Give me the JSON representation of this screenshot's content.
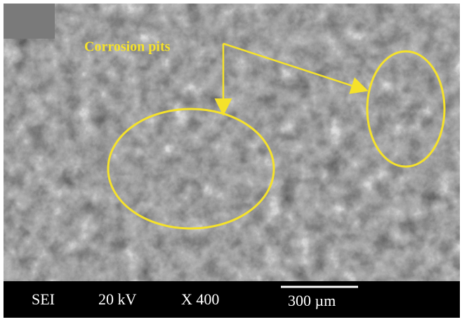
{
  "annotation": {
    "label": "Corrosion pits"
  },
  "info_bar": {
    "mode": "SEI",
    "voltage": "20 kV",
    "magnification": "X 400",
    "scale_bar_label": "300 µm"
  }
}
